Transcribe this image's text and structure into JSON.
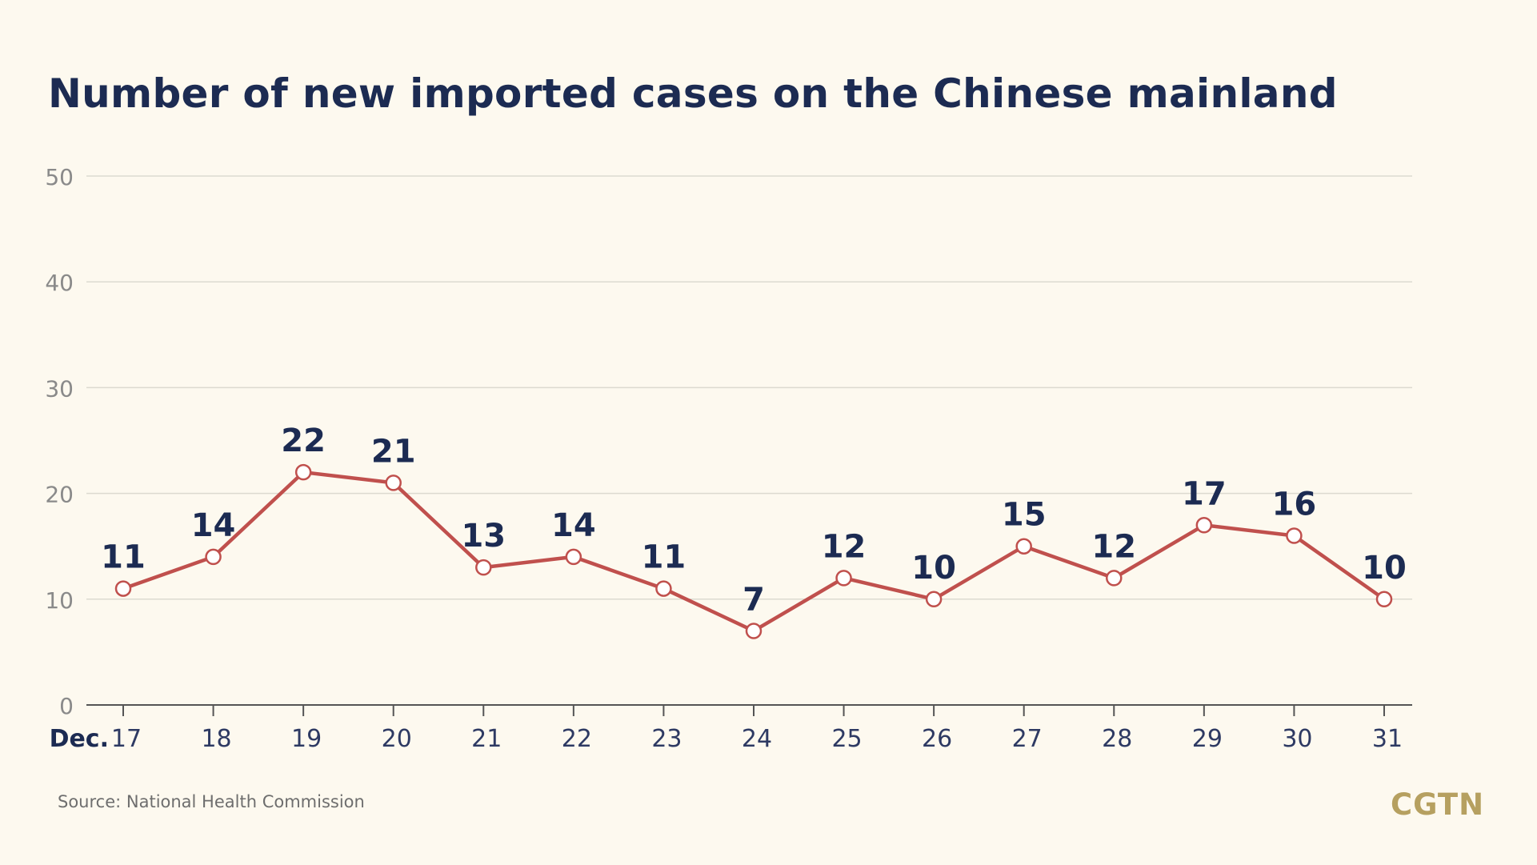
{
  "colors": {
    "background": "#fdf9ef",
    "title": "#1c2b52",
    "line": "#c0504d",
    "marker_fill": "#ffffff",
    "grid": "#dcdad0",
    "axis": "#555555",
    "tick_label": "#8a8a8a",
    "x_label": "#2e3a63",
    "logo": "#b6a060"
  },
  "source_text": "Source: National Health Commission",
  "logo_text": "CGTN",
  "chart_data": {
    "type": "line",
    "title": "Number of new imported cases on the Chinese mainland",
    "x_prefix": "Dec.",
    "categories": [
      "17",
      "18",
      "19",
      "20",
      "21",
      "22",
      "23",
      "24",
      "25",
      "26",
      "27",
      "28",
      "29",
      "30",
      "31"
    ],
    "series": [
      {
        "values": [
          11,
          14,
          22,
          21,
          13,
          14,
          11,
          7,
          12,
          10,
          15,
          12,
          17,
          16,
          10
        ]
      }
    ],
    "ylim": [
      0,
      50
    ],
    "yticks": [
      0,
      10,
      20,
      30,
      40,
      50
    ],
    "xlabel": "",
    "ylabel": "",
    "grid": true,
    "data_labels": true
  }
}
